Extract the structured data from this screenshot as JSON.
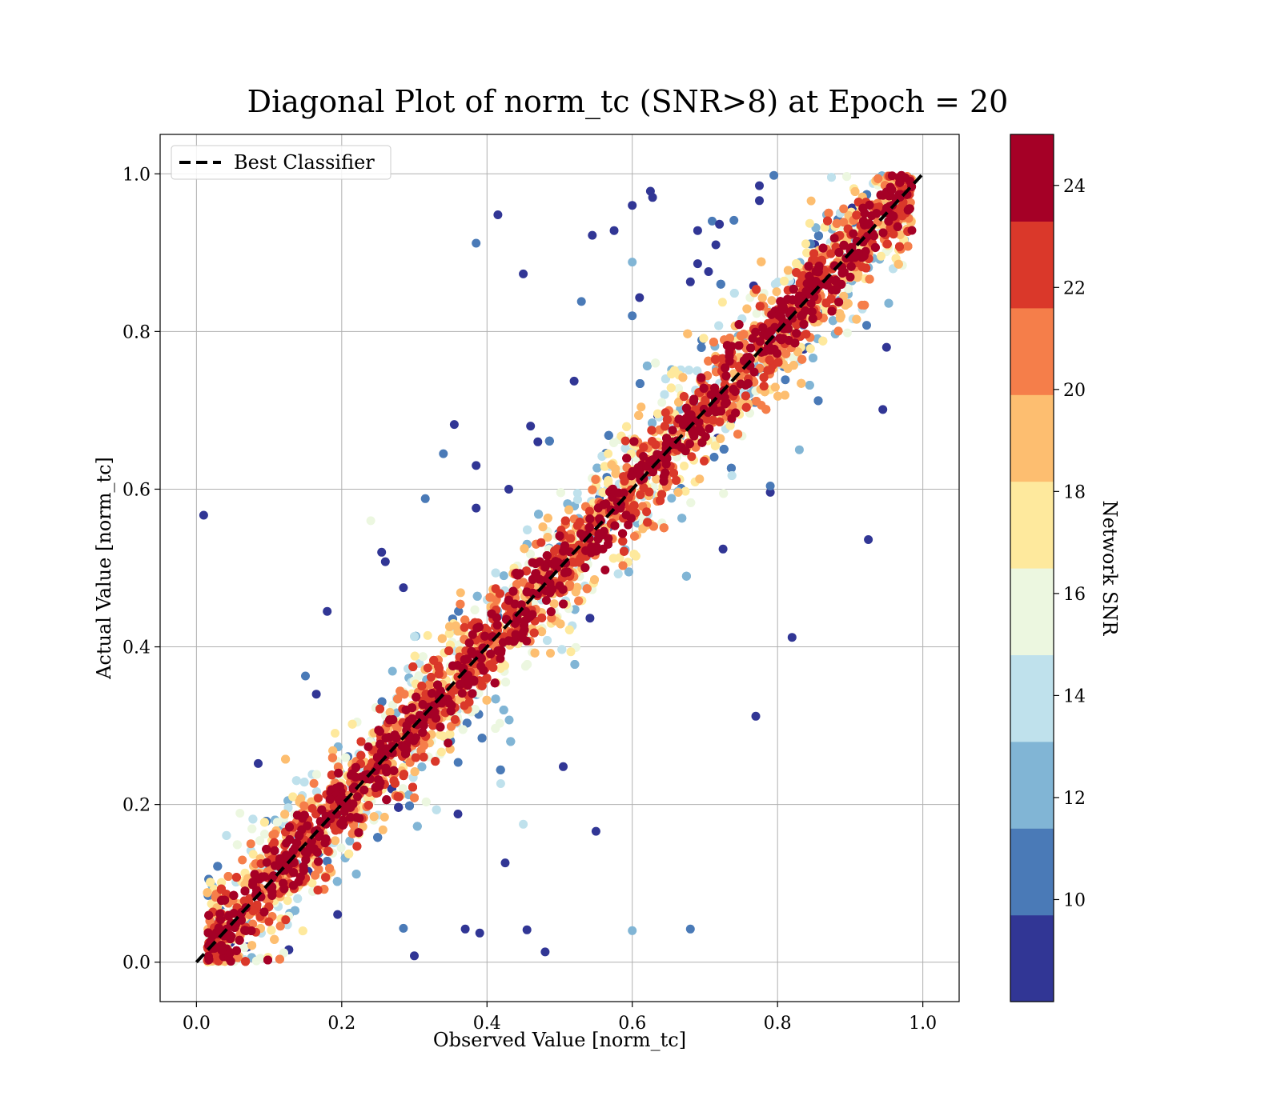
{
  "chart_data": {
    "type": "scatter",
    "title": "Diagonal Plot of norm_tc (SNR>8) at Epoch = 20",
    "xlabel": "Observed Value [norm_tc]",
    "ylabel": "Actual Value [norm_tc]",
    "xlim": [
      -0.05,
      1.05
    ],
    "ylim": [
      -0.05,
      1.05
    ],
    "xticks": [
      "0.0",
      "0.2",
      "0.4",
      "0.6",
      "0.8",
      "1.0"
    ],
    "yticks": [
      "0.0",
      "0.2",
      "0.4",
      "0.6",
      "0.8",
      "1.0"
    ],
    "grid": true,
    "legend": {
      "placement": "upper-left",
      "entries": [
        {
          "label": "Best Classifier",
          "style": "dashed",
          "color": "#000000"
        }
      ]
    },
    "reference_line": {
      "label": "Best Classifier",
      "x": [
        0,
        1
      ],
      "y": [
        0,
        1
      ]
    },
    "colorbar": {
      "label": "Network SNR",
      "range": [
        8,
        25
      ],
      "ticks": [
        "10",
        "12",
        "14",
        "16",
        "18",
        "20",
        "22",
        "24"
      ],
      "bins": [
        {
          "from": 8,
          "to": 9.7,
          "color": "#313695"
        },
        {
          "from": 9.7,
          "to": 11.4,
          "color": "#4a7ab7"
        },
        {
          "from": 11.4,
          "to": 13.1,
          "color": "#81b5d5"
        },
        {
          "from": 13.1,
          "to": 14.8,
          "color": "#bfe1ec"
        },
        {
          "from": 14.8,
          "to": 16.5,
          "color": "#ecf7e0"
        },
        {
          "from": 16.5,
          "to": 18.2,
          "color": "#fee99d"
        },
        {
          "from": 18.2,
          "to": 19.9,
          "color": "#fdbe70"
        },
        {
          "from": 19.9,
          "to": 21.6,
          "color": "#f57e4a"
        },
        {
          "from": 21.6,
          "to": 23.3,
          "color": "#da382a"
        },
        {
          "from": 23.3,
          "to": 25,
          "color": "#a50026"
        }
      ]
    },
    "outliers": [
      {
        "x": 0.01,
        "y": 0.567,
        "snr": 9
      },
      {
        "x": 0.18,
        "y": 0.445,
        "snr": 9
      },
      {
        "x": 0.15,
        "y": 0.363,
        "snr": 10
      },
      {
        "x": 0.165,
        "y": 0.34,
        "snr": 9
      },
      {
        "x": 0.085,
        "y": 0.252,
        "snr": 9
      },
      {
        "x": 0.24,
        "y": 0.56,
        "snr": 16
      },
      {
        "x": 0.255,
        "y": 0.52,
        "snr": 9
      },
      {
        "x": 0.26,
        "y": 0.508,
        "snr": 9
      },
      {
        "x": 0.285,
        "y": 0.475,
        "snr": 9
      },
      {
        "x": 0.315,
        "y": 0.588,
        "snr": 10
      },
      {
        "x": 0.34,
        "y": 0.645,
        "snr": 11
      },
      {
        "x": 0.355,
        "y": 0.682,
        "snr": 9
      },
      {
        "x": 0.385,
        "y": 0.63,
        "snr": 9
      },
      {
        "x": 0.385,
        "y": 0.576,
        "snr": 9
      },
      {
        "x": 0.385,
        "y": 0.912,
        "snr": 11
      },
      {
        "x": 0.415,
        "y": 0.948,
        "snr": 9
      },
      {
        "x": 0.45,
        "y": 0.873,
        "snr": 9
      },
      {
        "x": 0.53,
        "y": 0.838,
        "snr": 11
      },
      {
        "x": 0.52,
        "y": 0.737,
        "snr": 9
      },
      {
        "x": 0.545,
        "y": 0.922,
        "snr": 9
      },
      {
        "x": 0.575,
        "y": 0.928,
        "snr": 9
      },
      {
        "x": 0.6,
        "y": 0.96,
        "snr": 9
      },
      {
        "x": 0.6,
        "y": 0.888,
        "snr": 12
      },
      {
        "x": 0.6,
        "y": 0.82,
        "snr": 10
      },
      {
        "x": 0.61,
        "y": 0.843,
        "snr": 9
      },
      {
        "x": 0.625,
        "y": 0.978,
        "snr": 9
      },
      {
        "x": 0.628,
        "y": 0.97,
        "snr": 9
      },
      {
        "x": 0.46,
        "y": 0.68,
        "snr": 9
      },
      {
        "x": 0.47,
        "y": 0.66,
        "snr": 9
      },
      {
        "x": 0.43,
        "y": 0.6,
        "snr": 9
      },
      {
        "x": 0.77,
        "y": 0.312,
        "snr": 9
      },
      {
        "x": 0.82,
        "y": 0.412,
        "snr": 9
      },
      {
        "x": 0.925,
        "y": 0.536,
        "snr": 9
      },
      {
        "x": 0.945,
        "y": 0.701,
        "snr": 9
      },
      {
        "x": 0.505,
        "y": 0.248,
        "snr": 9
      },
      {
        "x": 0.55,
        "y": 0.166,
        "snr": 9
      },
      {
        "x": 0.45,
        "y": 0.175,
        "snr": 14
      },
      {
        "x": 0.425,
        "y": 0.126,
        "snr": 9
      },
      {
        "x": 0.36,
        "y": 0.188,
        "snr": 9
      },
      {
        "x": 0.37,
        "y": 0.042,
        "snr": 9
      },
      {
        "x": 0.39,
        "y": 0.037,
        "snr": 9
      },
      {
        "x": 0.455,
        "y": 0.041,
        "snr": 9
      },
      {
        "x": 0.48,
        "y": 0.013,
        "snr": 9
      },
      {
        "x": 0.3,
        "y": 0.008,
        "snr": 9
      },
      {
        "x": 0.285,
        "y": 0.043,
        "snr": 10
      },
      {
        "x": 0.6,
        "y": 0.04,
        "snr": 12
      },
      {
        "x": 0.68,
        "y": 0.042,
        "snr": 11
      },
      {
        "x": 0.795,
        "y": 0.998,
        "snr": 10
      },
      {
        "x": 0.775,
        "y": 0.985,
        "snr": 9
      },
      {
        "x": 0.775,
        "y": 0.966,
        "snr": 9
      },
      {
        "x": 0.71,
        "y": 0.94,
        "snr": 10
      },
      {
        "x": 0.72,
        "y": 0.936,
        "snr": 9
      },
      {
        "x": 0.69,
        "y": 0.928,
        "snr": 9
      },
      {
        "x": 0.68,
        "y": 0.863,
        "snr": 9
      },
      {
        "x": 0.69,
        "y": 0.886,
        "snr": 9
      },
      {
        "x": 0.705,
        "y": 0.876,
        "snr": 9
      },
      {
        "x": 0.715,
        "y": 0.91,
        "snr": 9
      },
      {
        "x": 0.79,
        "y": 0.596,
        "snr": 9
      },
      {
        "x": 0.79,
        "y": 0.604,
        "snr": 10
      },
      {
        "x": 0.83,
        "y": 0.65,
        "snr": 12
      },
      {
        "x": 0.725,
        "y": 0.524,
        "snr": 9
      },
      {
        "x": 0.95,
        "y": 0.78,
        "snr": 9
      },
      {
        "x": 0.74,
        "y": 0.941,
        "snr": 10
      }
    ],
    "diagonal_band": {
      "description_points": 9000,
      "spread_sd": 0.035,
      "color_field": "Network SNR"
    }
  }
}
